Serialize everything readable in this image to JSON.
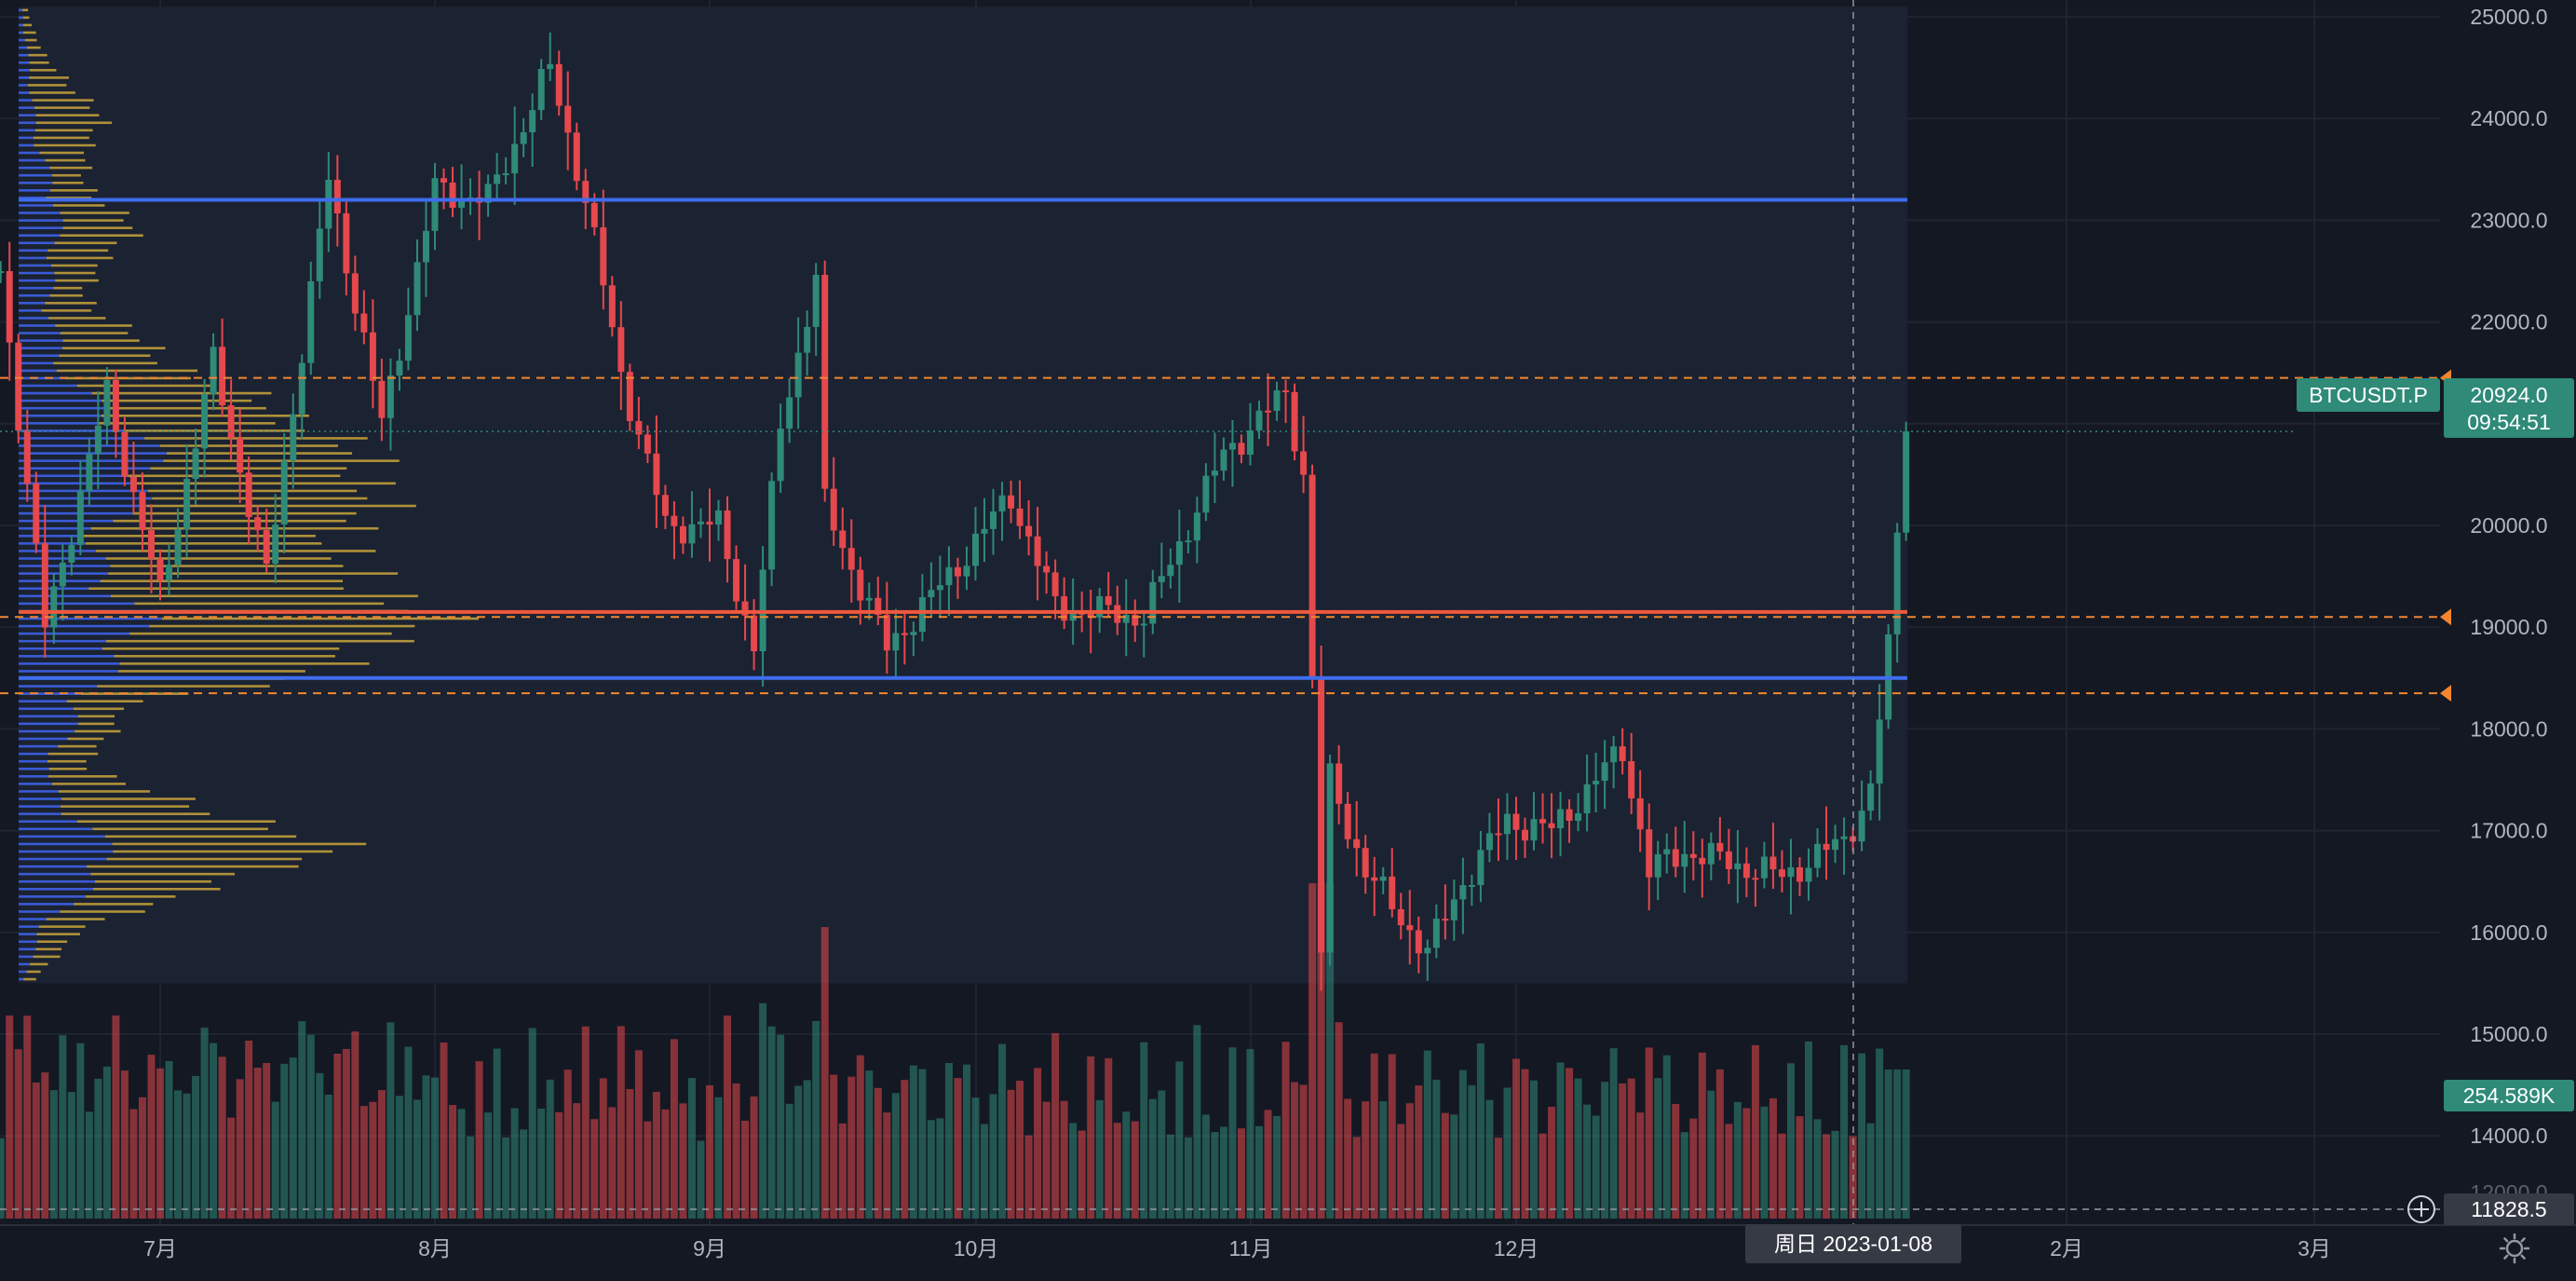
{
  "symbol": "BTCUSDT.P",
  "last_price": "20924.0",
  "countdown": "09:54:51",
  "volume_label": "254.589K",
  "crosshair": {
    "price": "11828.5",
    "date": "周日 2023-01-08"
  },
  "crosshair_volume_tick": "12000.0",
  "colors": {
    "background": "#141823",
    "up": "#2f8a78",
    "down": "#e5484d",
    "level_blue": "#3f6df0",
    "level_red": "#f0583e",
    "level_orange": "#f2862f",
    "profile_blue": "#3a5bd6",
    "profile_gold": "#c9a43c"
  },
  "chart_data": {
    "type": "candlestick",
    "ylim": [
      11500,
      25300
    ],
    "y_ticks": [
      "25000.0",
      "24000.0",
      "23000.0",
      "22000.0",
      "21000.0",
      "20000.0",
      "19000.0",
      "18000.0",
      "17000.0",
      "16000.0",
      "15000.0",
      "14000.0"
    ],
    "x_labels": [
      "7月",
      "8月",
      "9月",
      "10月",
      "11月",
      "12月",
      "2月",
      "3月"
    ],
    "horizontal_levels": [
      {
        "price": 23200,
        "style": "solid",
        "color": "blue"
      },
      {
        "price": 19150,
        "style": "solid",
        "color": "red"
      },
      {
        "price": 18500,
        "style": "solid",
        "color": "blue"
      },
      {
        "price": 21450,
        "style": "dashed",
        "color": "orange"
      },
      {
        "price": 19100,
        "style": "dashed",
        "color": "orange"
      },
      {
        "price": 18350,
        "style": "dashed",
        "color": "orange"
      }
    ],
    "close_path": [
      [
        "2022-06-13",
        22500
      ],
      [
        "2022-06-18",
        19000
      ],
      [
        "2022-06-25",
        21300
      ],
      [
        "2022-07-01",
        19300
      ],
      [
        "2022-07-07",
        21600
      ],
      [
        "2022-07-13",
        19500
      ],
      [
        "2022-07-20",
        23400
      ],
      [
        "2022-07-26",
        21000
      ],
      [
        "2022-08-01",
        23300
      ],
      [
        "2022-08-07",
        23200
      ],
      [
        "2022-08-14",
        24500
      ],
      [
        "2022-08-18",
        23200
      ],
      [
        "2022-08-22",
        21500
      ],
      [
        "2022-08-27",
        20000
      ],
      [
        "2022-09-02",
        20000
      ],
      [
        "2022-09-06",
        18800
      ],
      [
        "2022-09-09",
        21000
      ],
      [
        "2022-09-13",
        22400
      ],
      [
        "2022-09-14",
        20200
      ],
      [
        "2022-09-19",
        19200
      ],
      [
        "2022-09-21",
        18800
      ],
      [
        "2022-09-28",
        19500
      ],
      [
        "2022-10-05",
        20300
      ],
      [
        "2022-10-10",
        19200
      ],
      [
        "2022-10-20",
        19100
      ],
      [
        "2022-10-25",
        20000
      ],
      [
        "2022-10-29",
        20700
      ],
      [
        "2022-11-05",
        21300
      ],
      [
        "2022-11-07",
        20500
      ],
      [
        "2022-11-08",
        18500
      ],
      [
        "2022-11-09",
        15800
      ],
      [
        "2022-11-10",
        17500
      ],
      [
        "2022-11-14",
        16600
      ],
      [
        "2022-11-21",
        15800
      ],
      [
        "2022-11-25",
        16500
      ],
      [
        "2022-11-30",
        17100
      ],
      [
        "2022-12-05",
        17000
      ],
      [
        "2022-12-13",
        17800
      ],
      [
        "2022-12-16",
        16600
      ],
      [
        "2022-12-20",
        16800
      ],
      [
        "2022-12-31",
        16550
      ],
      [
        "2023-01-07",
        16900
      ],
      [
        "2023-01-10",
        17400
      ],
      [
        "2023-01-12",
        18800
      ],
      [
        "2023-01-13",
        19900
      ],
      [
        "2023-01-14",
        20924
      ]
    ],
    "volume_profile": {
      "price_range": [
        15500,
        25100
      ],
      "blue_length_shape": [
        [
          15500,
          6
        ],
        [
          16000,
          20
        ],
        [
          16700,
          100
        ],
        [
          17500,
          26
        ],
        [
          18200,
          62
        ],
        [
          18600,
          92
        ],
        [
          19100,
          130
        ],
        [
          19400,
          96
        ],
        [
          19800,
          70
        ],
        [
          20500,
          150
        ],
        [
          21000,
          110
        ],
        [
          21400,
          50
        ],
        [
          22200,
          30
        ],
        [
          23100,
          42
        ],
        [
          23800,
          18
        ],
        [
          24700,
          8
        ],
        [
          25100,
          3
        ]
      ],
      "gold_length_shape": [
        [
          15500,
          10
        ],
        [
          16000,
          45
        ],
        [
          16500,
          150
        ],
        [
          16800,
          270
        ],
        [
          17100,
          190
        ],
        [
          17600,
          50
        ],
        [
          18200,
          60
        ],
        [
          18500,
          220
        ],
        [
          19000,
          330
        ],
        [
          19300,
          300
        ],
        [
          19700,
          270
        ],
        [
          20100,
          280
        ],
        [
          20500,
          260
        ],
        [
          20900,
          230
        ],
        [
          21300,
          180
        ],
        [
          21600,
          120
        ],
        [
          22300,
          40
        ],
        [
          22900,
          90
        ],
        [
          23400,
          40
        ],
        [
          24000,
          75
        ],
        [
          24600,
          20
        ],
        [
          25100,
          5
        ]
      ]
    }
  }
}
